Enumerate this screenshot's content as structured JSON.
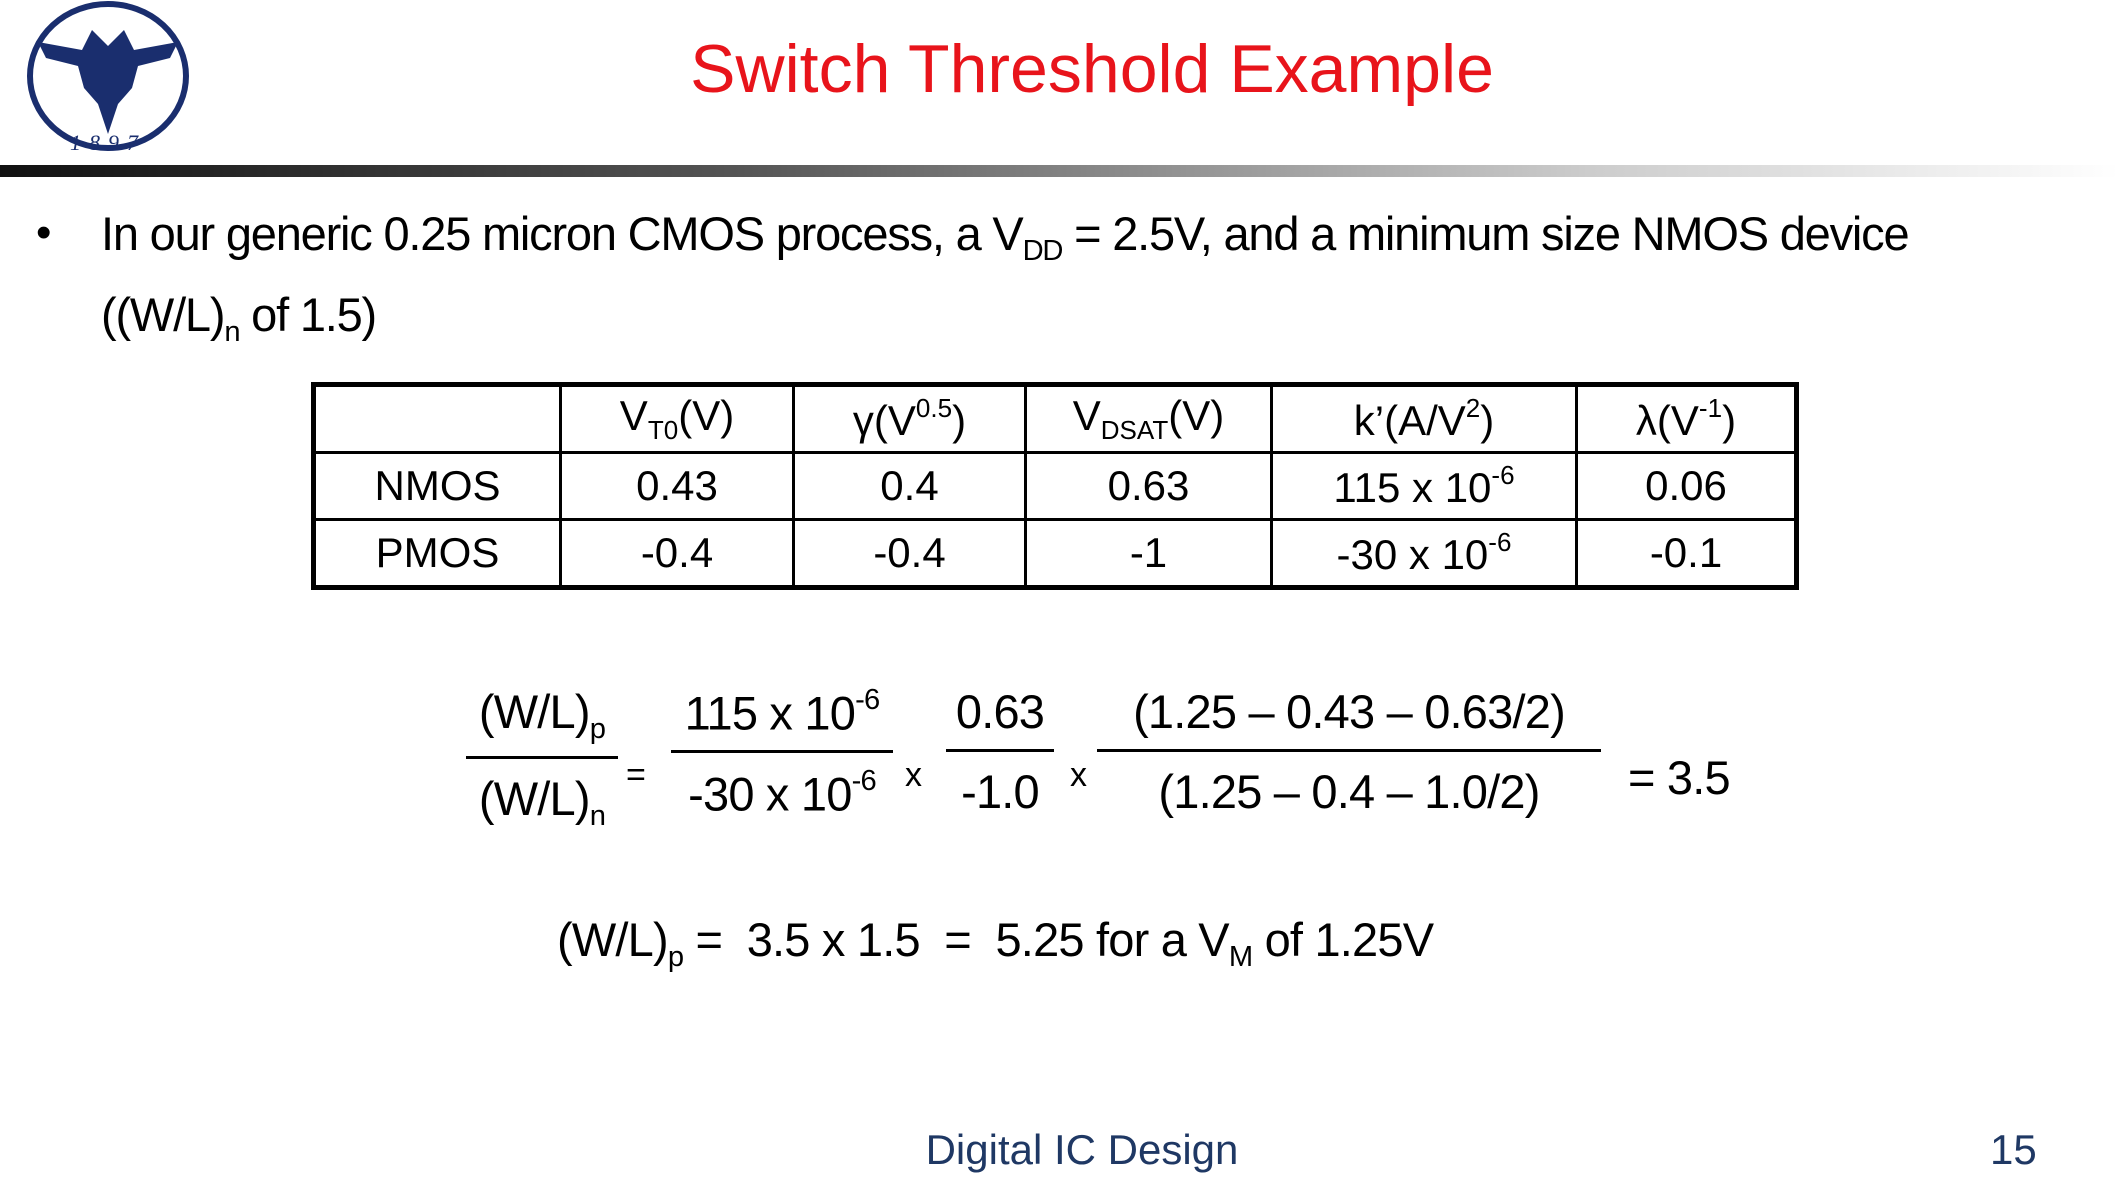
{
  "header": {
    "title": "Switch Threshold Example",
    "logo_year": "1897"
  },
  "bullet": [
    "In our generic 0.25 micron CMOS process, a V",
    {
      "sub": "DD"
    },
    " = 2.5V, and a minimum size NMOS device",
    "((W/L)",
    {
      "sub": "n"
    },
    " of 1.5)"
  ],
  "table": {
    "header": [
      [
        "V",
        {
          "sub": "T0"
        },
        "(V)"
      ],
      [
        "γ(V",
        {
          "sup": "0.5"
        },
        ")"
      ],
      [
        "V",
        {
          "sub": "DSAT"
        },
        "(V)"
      ],
      [
        "k’(A/V",
        {
          "sup": "2"
        },
        ")"
      ],
      [
        "λ(V",
        {
          "sup": "-1"
        },
        ")"
      ]
    ],
    "rows": [
      [
        "NMOS",
        "0.43",
        "0.4",
        "0.63",
        [
          "115 x 10",
          {
            "sup": "-6"
          }
        ],
        "0.06"
      ],
      [
        "PMOS",
        "-0.4",
        "-0.4",
        "-1",
        [
          "-30 x 10",
          {
            "sup": "-6"
          }
        ],
        "-0.1"
      ]
    ]
  },
  "equation": {
    "terms": [
      {
        "num": [
          "(W/L)",
          {
            "sub": "p"
          }
        ],
        "den": [
          "(W/L)",
          {
            "sub": "n"
          }
        ]
      },
      "=",
      {
        "num": [
          "115 x 10",
          {
            "sup": "-6"
          }
        ],
        "den": [
          "-30 x 10",
          {
            "sup": "-6"
          }
        ]
      },
      "x",
      {
        "num": [
          "0.63"
        ],
        "den": [
          "-1.0"
        ]
      },
      "x",
      {
        "num": [
          "(1.25 – 0.43 – 0.63/2)"
        ],
        "den": [
          "(1.25 – 0.4 – 1.0/2)"
        ]
      },
      "= 3.5"
    ]
  },
  "result": [
    "(W/L)",
    {
      "sub": "p"
    },
    " =  3.5 x 1.5  =  5.25 for a V",
    {
      "sub": "M"
    },
    " of 1.25V"
  ],
  "footer": {
    "course": "Digital IC Design",
    "page": "15"
  }
}
